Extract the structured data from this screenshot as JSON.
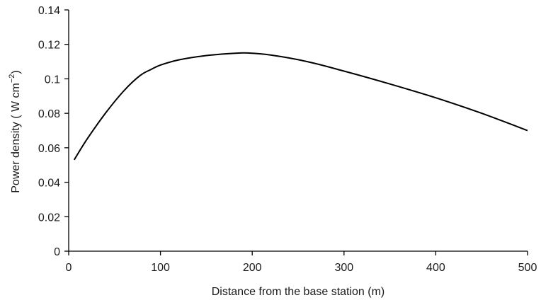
{
  "chart_data": {
    "type": "line",
    "xlabel": "Distance from the base station (m)",
    "ylabel": "Power density ( W cm",
    "ylabel_exponent": "−2",
    "ylabel_close": ")",
    "xlim": [
      0,
      500
    ],
    "ylim": [
      0,
      0.14
    ],
    "xticks": [
      0,
      100,
      200,
      300,
      400,
      500
    ],
    "xtick_labels": [
      "0",
      "100",
      "200",
      "300",
      "400",
      "500"
    ],
    "yticks": [
      0,
      0.02,
      0.04,
      0.06,
      0.08,
      0.1,
      0.12,
      0.14
    ],
    "ytick_labels": [
      "0",
      "0.02",
      "0.04",
      "0.06",
      "0.08",
      "0.1",
      "0.12",
      "0.14"
    ],
    "grid": false,
    "series": [
      {
        "x": [
          6,
          20,
          40,
          60,
          78,
          90,
          100,
          120,
          150,
          180,
          195,
          220,
          260,
          300,
          350,
          400,
          450,
          500
        ],
        "y": [
          0.053,
          0.065,
          0.08,
          0.093,
          0.102,
          0.1055,
          0.108,
          0.111,
          0.1135,
          0.1148,
          0.115,
          0.1138,
          0.11,
          0.1045,
          0.097,
          0.089,
          0.08,
          0.07
        ]
      }
    ]
  }
}
